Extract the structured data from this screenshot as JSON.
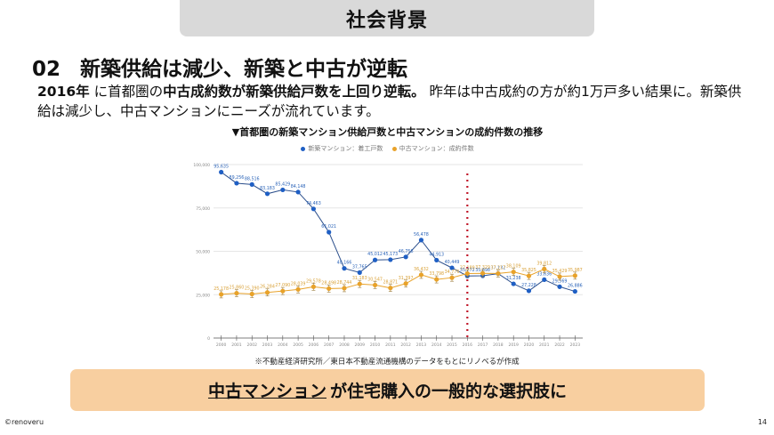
{
  "header": {
    "title": "社会背景"
  },
  "headline": {
    "number": "02",
    "text": "新築供給は減少、新築と中古が逆転"
  },
  "lead": {
    "part1_bold": "2016年",
    "part2": " に首都圏の",
    "part3_bold": "中古成約数が新築供給戸数を上回り逆転。",
    "part4": "  昨年は中古成約の方が約1万戸多い結果に。新築供給は減少し、中古マンションにニーズが流れています。"
  },
  "source_note": "※不動産経済研究所／東日本不動産流通機構のデータをもとにリノベるが作成",
  "callout": {
    "underlined": "中古マンション",
    "rest": "が住宅購入の一般的な選択肢に"
  },
  "footer": {
    "copyright": "©renoveru",
    "page": "14"
  },
  "colors": {
    "new": "#1f5fc4",
    "used": "#e8a22a",
    "marker": "#c0182a",
    "callout_bg": "#f8cfa0"
  },
  "chart_data": {
    "type": "line",
    "title": "▼首都圏の新築マンション供給戸数と中古マンションの成約件数の推移",
    "xlabel": "",
    "ylabel": "",
    "ylim": [
      0,
      100000
    ],
    "yticks": [
      0,
      25000,
      50000,
      75000,
      100000
    ],
    "ytick_labels": [
      "0",
      "25,000",
      "50,000",
      "75,000",
      "100,000"
    ],
    "grid": true,
    "legend_position": "top-center",
    "categories": [
      "2000",
      "2001",
      "2002",
      "2003",
      "2004",
      "2005",
      "2006",
      "2007",
      "2008",
      "2009",
      "2010",
      "2011",
      "2012",
      "2013",
      "2014",
      "2015",
      "2016",
      "2017",
      "2018",
      "2019",
      "2020",
      "2021",
      "2022",
      "2023"
    ],
    "series": [
      {
        "name": "新築マンション：着工戸数",
        "color": "#1f5fc4",
        "values": [
          95635,
          89256,
          88516,
          83183,
          85429,
          84148,
          74463,
          61021,
          40166,
          37765,
          45012,
          45173,
          46756,
          56478,
          44913,
          40449,
          35772,
          35898,
          37132,
          31238,
          27228,
          33636,
          29569,
          26886
        ],
        "labels": [
          "95,635",
          "89,256",
          "88,516",
          "83,183",
          "85,429",
          "84,148",
          "74,463",
          "61,021",
          "40,166",
          "37,765",
          "45,012",
          "45,173",
          "46,756",
          "56,478",
          "44,913",
          "40,449",
          "35,772",
          "35,898",
          "37,132",
          "31,238",
          "27,228",
          "33,636",
          "29,569",
          "26,886"
        ]
      },
      {
        "name": "中古マンション：成約件数",
        "color": "#e8a22a",
        "error_bars": true,
        "values": [
          25178,
          25860,
          25390,
          26284,
          27090,
          28039,
          29578,
          28498,
          28744,
          31183,
          30547,
          28871,
          31397,
          36432,
          33798,
          34776,
          37189,
          37329,
          37217,
          38109,
          35825,
          39812,
          35429,
          35987
        ],
        "labels": [
          "25,178",
          "25,860",
          "25,390",
          "26,284",
          "27,090",
          "28,039",
          "29,578",
          "28,498",
          "28,744",
          "31,183",
          "30,547",
          "28,871",
          "31,397",
          "36,432",
          "33,798",
          "34,776",
          "37,189",
          "37,329",
          "37,217",
          "38,109",
          "35,825",
          "39,812",
          "35,429",
          "35,987"
        ]
      }
    ],
    "annotations": [
      {
        "type": "vertical-dotted-line",
        "x": "2016",
        "color": "#c0182a"
      }
    ]
  }
}
